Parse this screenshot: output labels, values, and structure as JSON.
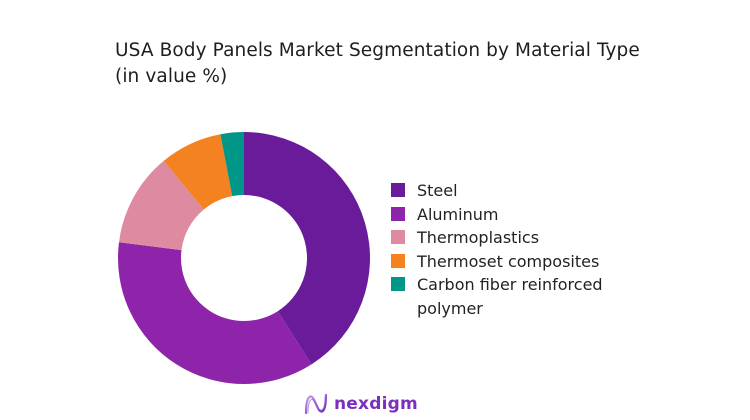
{
  "title": {
    "line1": "USA Body Panels Market Segmentation by Material Type",
    "line2": "(in value %)"
  },
  "chart_data": {
    "type": "pie",
    "subtype": "donut",
    "title": "USA Body Panels Market Segmentation by Material Type (in value %)",
    "categories": [
      "Steel",
      "Aluminum",
      "Thermoplastics",
      "Thermoset composites",
      "Carbon fiber reinforced polymer"
    ],
    "values": [
      41,
      36,
      12,
      8,
      3
    ],
    "colors": [
      "#6a1b9a",
      "#8e24aa",
      "#de8aa0",
      "#f58220",
      "#009688"
    ],
    "start_angle": "12 o'clock, clockwise",
    "legend_position": "right",
    "data_labels": false
  },
  "legend": {
    "items": [
      {
        "label": "Steel",
        "color": "#6a1b9a"
      },
      {
        "label": "Aluminum",
        "color": "#8e24aa"
      },
      {
        "label": "Thermoplastics",
        "color": "#de8aa0"
      },
      {
        "label": "Thermoset composites",
        "color": "#f58220"
      },
      {
        "label": "Carbon fiber reinforced",
        "label_line2": "polymer",
        "color": "#009688"
      }
    ]
  },
  "branding": {
    "logo_text": "nexdigm",
    "logo_icon": "wave-n-icon",
    "accent": "#7b2fbf"
  }
}
